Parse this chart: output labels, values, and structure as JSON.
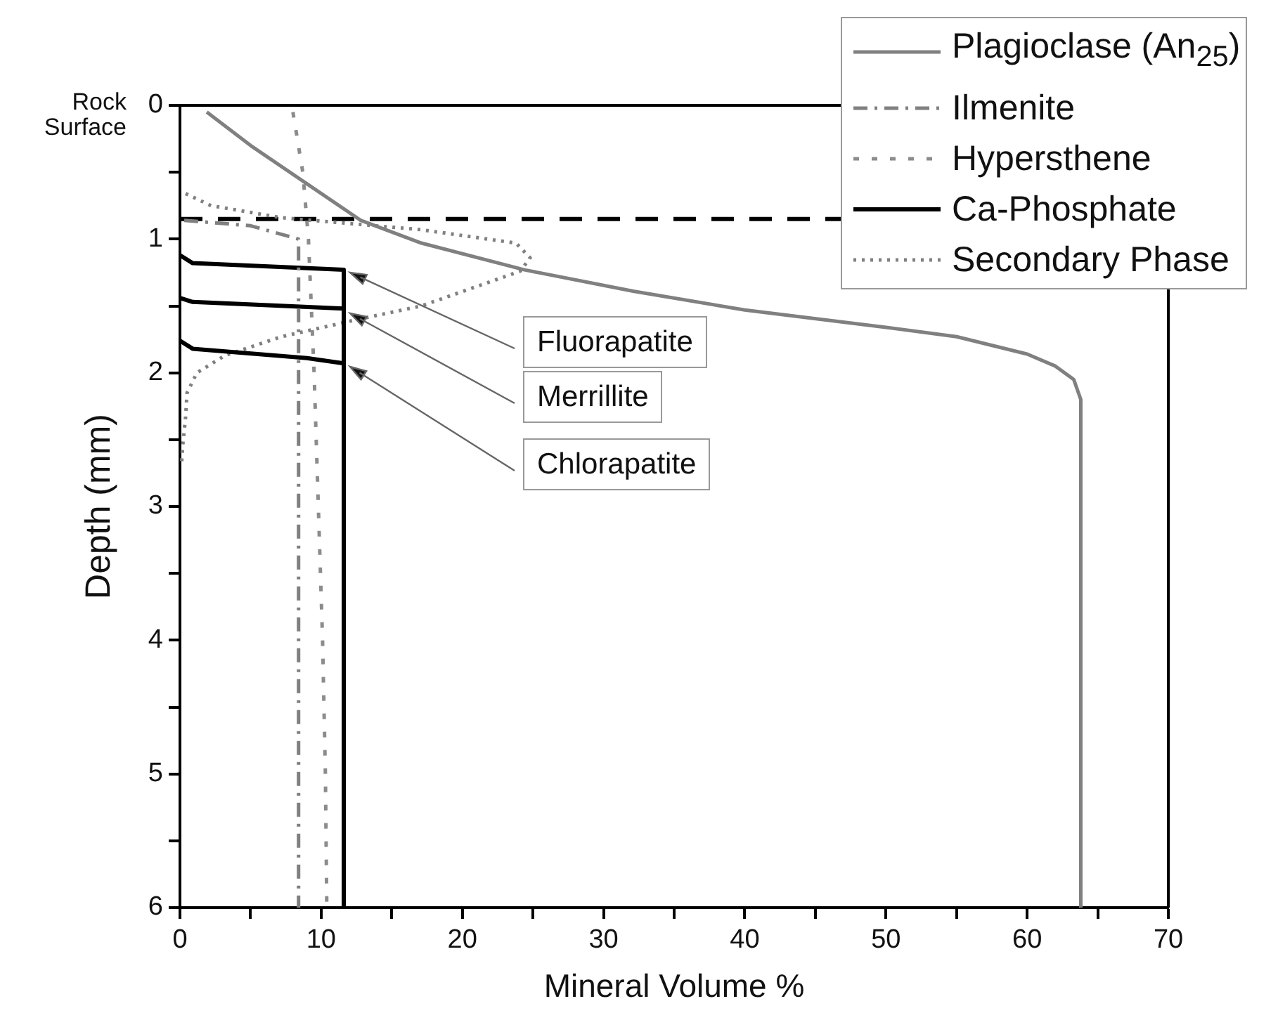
{
  "chart_data": {
    "type": "line",
    "xlabel": "Mineral Volume %",
    "ylabel": "Depth (mm)",
    "xlim": [
      0,
      70
    ],
    "xticks": [
      0,
      {
        "value": 5,
        "label": null
      },
      10,
      {
        "value": 15,
        "label": null
      },
      20,
      {
        "value": 25,
        "label": null
      },
      30,
      {
        "value": 35,
        "label": null
      },
      40,
      {
        "value": 45,
        "label": null
      },
      50,
      {
        "value": 55,
        "label": null
      },
      60,
      {
        "value": 65,
        "label": null
      },
      70
    ],
    "ylim": [
      6,
      0
    ],
    "yticks": [
      0,
      {
        "value": 0.5,
        "label": null
      },
      1,
      {
        "value": 1.5,
        "label": null
      },
      2,
      {
        "value": 2.5,
        "label": null
      },
      3,
      {
        "value": 3.5,
        "label": null
      },
      4,
      {
        "value": 4.5,
        "label": null
      },
      5,
      {
        "value": 5.5,
        "label": null
      },
      6
    ],
    "legend": "top right",
    "marker": "none",
    "series": [
      {
        "name": "Plagioclase (An$_{25}$)",
        "color": "#808080",
        "line_style": "solid",
        "x": [
          1.9,
          5,
          8.9,
          12.8,
          17.1,
          24.4,
          32.1,
          40,
          50,
          55,
          60,
          62,
          63.3,
          63.8,
          63.8
        ],
        "values": [
          0.05,
          0.3,
          0.58,
          0.86,
          1.03,
          1.23,
          1.39,
          1.53,
          1.66,
          1.73,
          1.86,
          1.95,
          2.05,
          2.2,
          6
        ]
      },
      {
        "name": "Ilmenite",
        "color": "#808080",
        "line_style": "dashdot",
        "x": [
          0.3,
          5,
          8.4,
          8.4
        ],
        "values": [
          0.86,
          0.9,
          1.0,
          6
        ]
      },
      {
        "name": "Hypersthene",
        "color": "#8c8c8c",
        "line_style": "dashed",
        "x": [
          8.0,
          8.7,
          9.1,
          9.5,
          9.8,
          10.1,
          10.3,
          10.4
        ],
        "values": [
          0.05,
          0.5,
          1.0,
          2,
          3,
          4,
          5,
          6
        ]
      },
      {
        "name": "Ca-Phosphate",
        "color": "#000000",
        "line_style": "solid",
        "x": [
          0,
          0.9,
          11.6,
          11.6,
          null,
          0,
          0.9,
          11.6,
          null,
          0,
          0.9,
          9,
          11.6
        ],
        "values": [
          1.12,
          1.18,
          1.23,
          6,
          null,
          1.44,
          1.47,
          1.52,
          null,
          1.76,
          1.82,
          1.89,
          1.93
        ]
      },
      {
        "name": "Secondary Phase",
        "color": "#808080",
        "line_style": "dotted",
        "x": [
          0.4,
          2.2,
          7.2,
          17.1,
          23.8,
          24.8,
          24.1,
          17.1,
          12.2,
          7.2,
          3.2,
          1.2,
          0.5,
          0.4,
          0.2,
          0.1
        ],
        "values": [
          0.66,
          0.75,
          0.84,
          0.93,
          1.03,
          1.14,
          1.24,
          1.5,
          1.61,
          1.73,
          1.87,
          2.0,
          2.15,
          2.33,
          2.54,
          2.7
        ]
      }
    ],
    "ref_lines": [
      {
        "axis": "y",
        "value": 0.85,
        "color": "#000000",
        "line_style": "dashed"
      }
    ],
    "annotations": [
      "Rock Surface",
      "Fluorapatite",
      "Merrillite",
      "Chlorapatite"
    ]
  }
}
